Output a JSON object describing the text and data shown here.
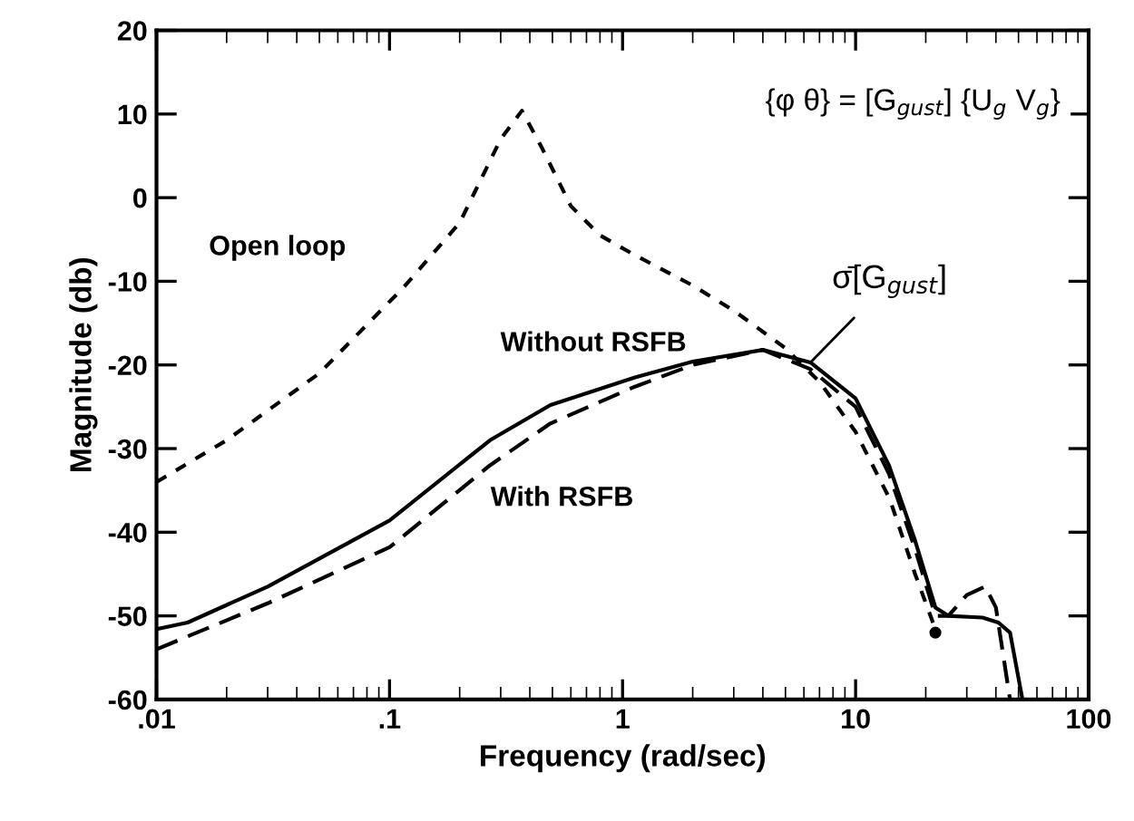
{
  "chart_data": {
    "type": "line",
    "xlabel": "Frequency (rad/sec)",
    "ylabel": "Magnitude (db)",
    "log": "x",
    "xlim": [
      0.01,
      100
    ],
    "ylim": [
      -60,
      20
    ],
    "xticks": [
      {
        "value": 0.01,
        "label": ".01"
      },
      {
        "value": 0.1,
        "label": ".1"
      },
      1,
      10,
      100
    ],
    "yticks": [
      -60,
      -50,
      -40,
      -30,
      -20,
      -10,
      0,
      10,
      20
    ],
    "grid": false,
    "marker": "none",
    "series": [
      {
        "name": "Open loop",
        "color": "#000000",
        "line_style": "dotted",
        "x": [
          0.01,
          0.02,
          0.05,
          0.116,
          0.2,
          0.3,
          0.37,
          0.45,
          0.6,
          0.8,
          1.1,
          2,
          3,
          5,
          7,
          10,
          14,
          18,
          22
        ],
        "values": [
          -34,
          -29,
          -21,
          -10.6,
          -3,
          7,
          10.4,
          6,
          -1,
          -4.5,
          -6.7,
          -10.5,
          -13.5,
          -18,
          -22,
          -28,
          -36,
          -45,
          -51.6
        ]
      },
      {
        "name": "Without RSFB",
        "color": "#000000",
        "line_style": "solid",
        "x": [
          0.01,
          0.0136,
          0.03,
          0.1,
          0.27,
          0.49,
          1.13,
          2,
          4,
          6.4,
          10,
          13.9,
          18,
          22,
          25,
          35,
          41,
          46,
          52
        ],
        "values": [
          -51.6,
          -50.8,
          -46.5,
          -38.6,
          -29,
          -24.8,
          -21.5,
          -19.6,
          -18.2,
          -19.7,
          -24,
          -32,
          -41,
          -49,
          -50,
          -50.2,
          -50.8,
          -52,
          -60
        ]
      },
      {
        "name": "With RSFB",
        "color": "#000000",
        "line_style": "dashed",
        "x": [
          0.01,
          0.03,
          0.1,
          0.27,
          0.49,
          1.13,
          2,
          4,
          6.4,
          10,
          13.9,
          18,
          22,
          25,
          30,
          36,
          40,
          46
        ],
        "values": [
          -54,
          -48.5,
          -41.8,
          -32,
          -27,
          -22.6,
          -20,
          -18.2,
          -20.5,
          -25,
          -33,
          -42,
          -50,
          -50,
          -47.5,
          -46.5,
          -49,
          -60
        ]
      },
      {
        "type": "scatter",
        "color": "#000000",
        "marker": "circle",
        "x": [
          22
        ],
        "values": [
          -52
        ]
      }
    ],
    "annotations": [
      {
        "text": "σ̄[G$_{gust}$]",
        "x": 6.4,
        "y": -19.7
      },
      "{φ θ} = [G$_{gust}$] {U$_{g}$ V$_{g}$}"
    ]
  }
}
